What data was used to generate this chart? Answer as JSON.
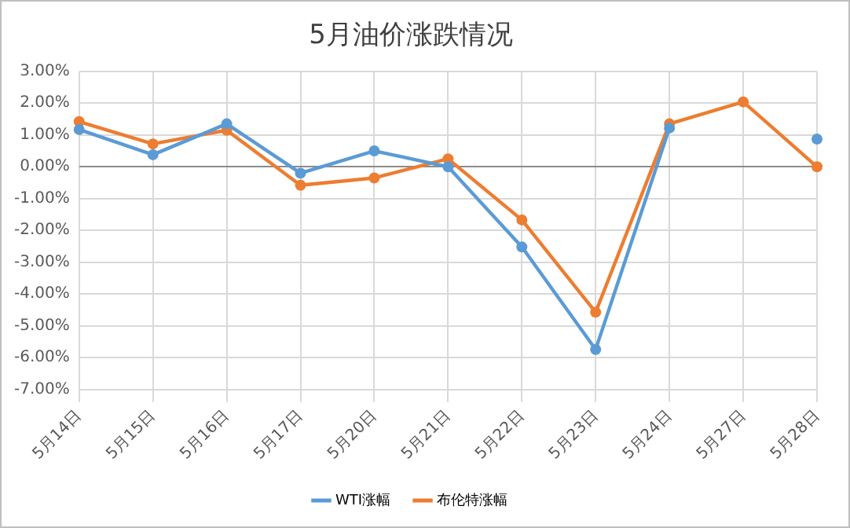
{
  "chart_data": {
    "type": "line",
    "title": "5月油价涨跌情况",
    "categories": [
      "5月14日",
      "5月15日",
      "5月16日",
      "5月17日",
      "5月20日",
      "5月21日",
      "5月22日",
      "5月23日",
      "5月24日",
      "5月27日",
      "5月28日"
    ],
    "series": [
      {
        "name": "WTI涨幅",
        "color": "#5b9bd5",
        "values": [
          1.17,
          0.38,
          1.35,
          -0.2,
          0.5,
          0.0,
          -2.52,
          -5.74,
          1.22,
          null,
          0.87
        ]
      },
      {
        "name": "布伦特涨幅",
        "color": "#ed7d31",
        "values": [
          1.42,
          0.72,
          1.15,
          -0.58,
          -0.35,
          0.25,
          -1.67,
          -4.57,
          1.35,
          2.04,
          0.0
        ]
      }
    ],
    "ylim": [
      -7,
      3
    ],
    "yticks": [
      {
        "value": 3,
        "label": "3.00%"
      },
      {
        "value": 2,
        "label": "2.00%"
      },
      {
        "value": 1,
        "label": "1.00%"
      },
      {
        "value": 0,
        "label": "0.00%"
      },
      {
        "value": -1,
        "label": "-1.00%"
      },
      {
        "value": -2,
        "label": "-2.00%"
      },
      {
        "value": -3,
        "label": "-3.00%"
      },
      {
        "value": -4,
        "label": "-4.00%"
      },
      {
        "value": -5,
        "label": "-5.00%"
      },
      {
        "value": -6,
        "label": "-6.00%"
      },
      {
        "value": -7,
        "label": "-7.00%"
      }
    ],
    "grid": true,
    "legend": "bottom",
    "marker": "circle",
    "line_style": "solid"
  }
}
